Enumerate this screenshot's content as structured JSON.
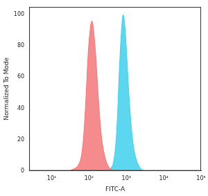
{
  "chart_data": {
    "type": "line",
    "x_label": "FITC-A",
    "y_label": "Normalized To Mode",
    "log": "x",
    "grid": false,
    "xlim": [
      2.5,
      100000
    ],
    "xticks": [
      {
        "value": 10,
        "label": "10¹"
      },
      {
        "value": 100,
        "label": "10²"
      },
      {
        "value": 1000,
        "label": "10³"
      },
      {
        "value": 10000,
        "label": "10⁴"
      },
      {
        "value": 100000,
        "label": "10⁵"
      }
    ],
    "ylim": [
      0,
      105
    ],
    "yticks": [
      0,
      20,
      40,
      60,
      80,
      100
    ],
    "series": [
      {
        "color": "#f4777a",
        "x": [
          30,
          50,
          65,
          80,
          95,
          110,
          120,
          130,
          150,
          180,
          220,
          280,
          350,
          450
        ],
        "values": [
          0,
          3,
          12,
          40,
          75,
          93,
          96,
          92,
          75,
          45,
          20,
          7,
          2,
          0
        ]
      },
      {
        "color": "#3fd0ec",
        "x": [
          350,
          450,
          550,
          650,
          750,
          820,
          900,
          1000,
          1200,
          1500,
          1900,
          2500,
          3000
        ],
        "values": [
          0,
          5,
          25,
          65,
          92,
          100,
          94,
          78,
          45,
          18,
          6,
          1,
          0
        ]
      }
    ]
  }
}
